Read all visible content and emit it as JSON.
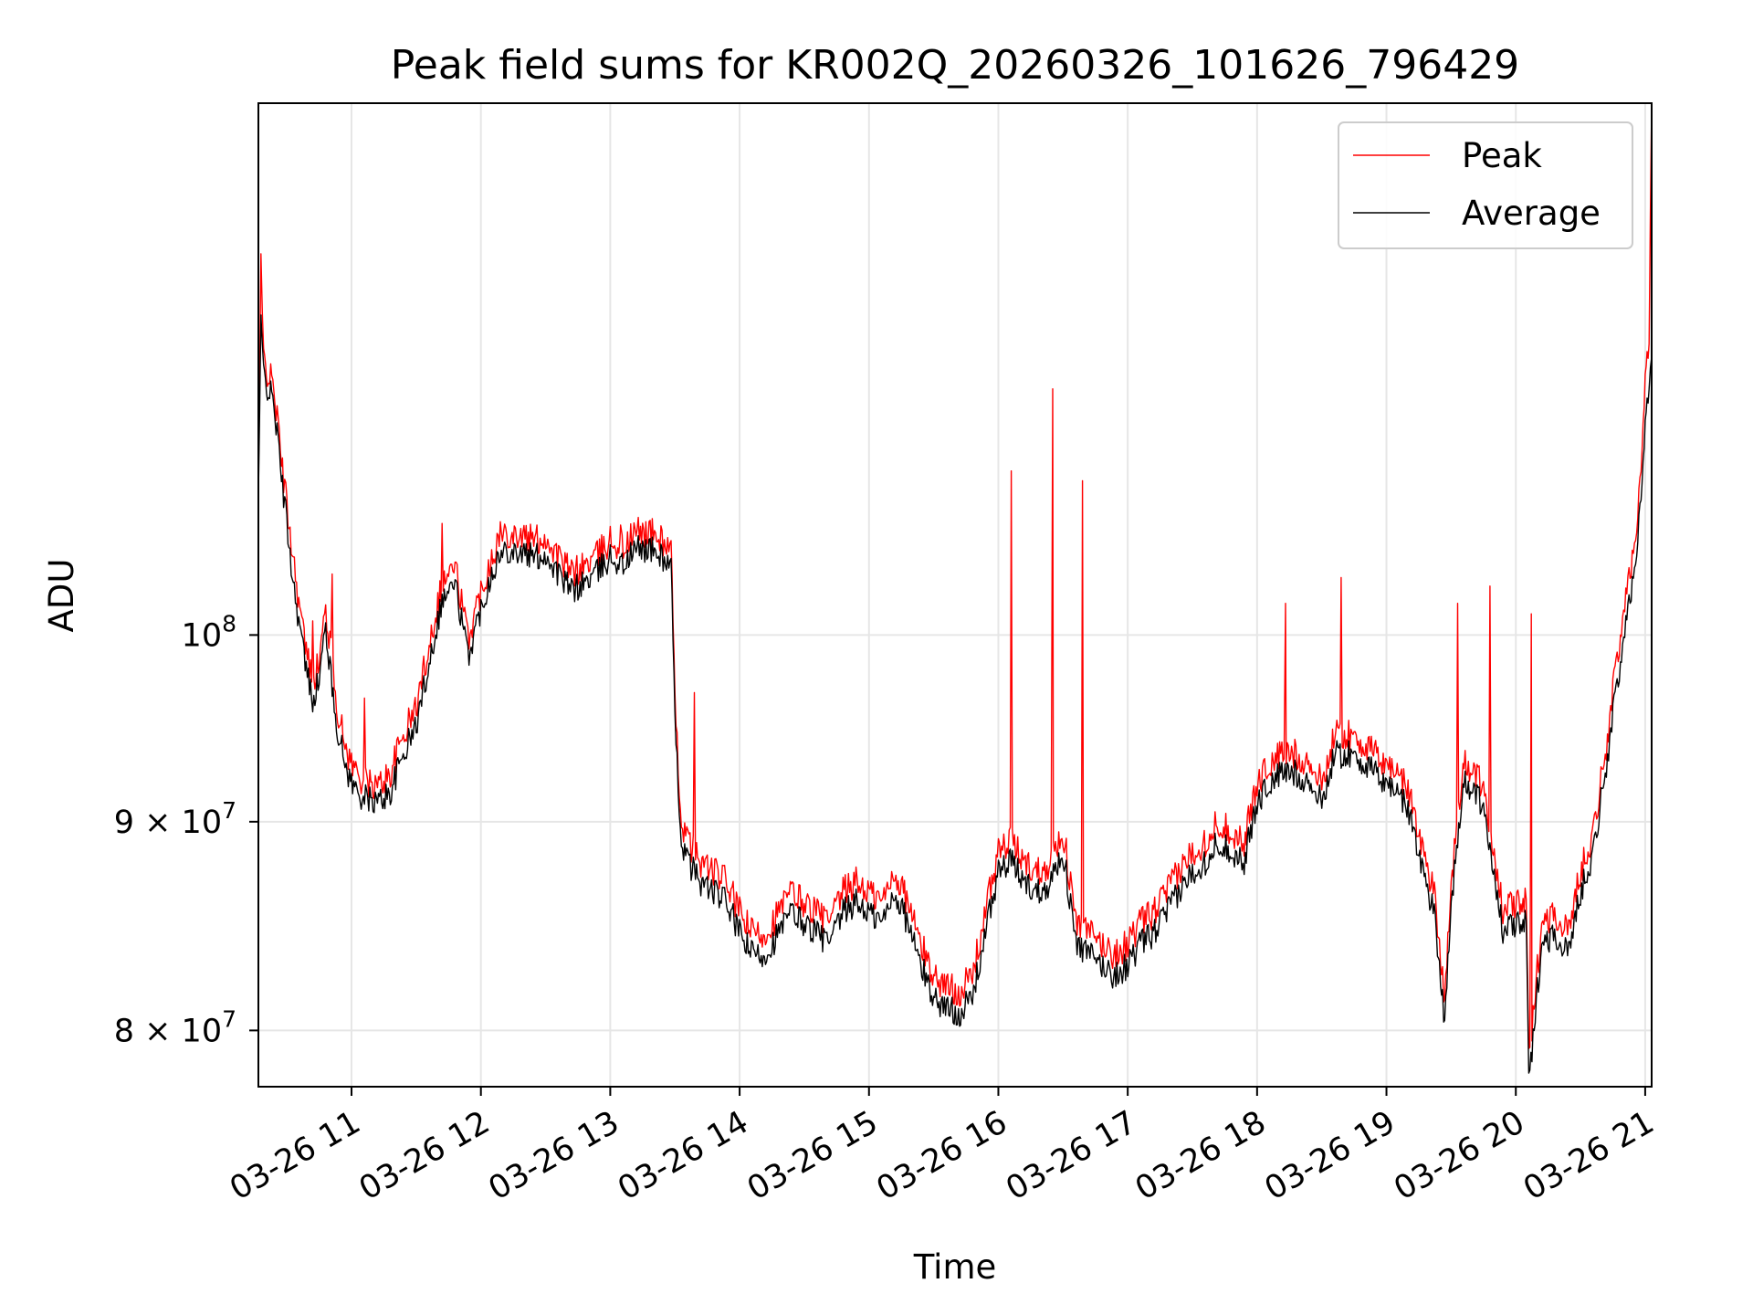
{
  "chart_data": {
    "type": "line",
    "title": "Peak field sums for KR002Q_20260326_101626_796429",
    "xlabel": "Time",
    "ylabel": "ADU",
    "yscale": "log",
    "grid": true,
    "legend_placement": "top-right",
    "xlim": [
      10.28,
      21.05
    ],
    "ylim": [
      77500000,
      135000000
    ],
    "x_ticks": [
      11,
      12,
      13,
      14,
      15,
      16,
      17,
      18,
      19,
      20,
      21
    ],
    "x_tick_labels": [
      "03-26 11",
      "03-26 12",
      "03-26 13",
      "03-26 14",
      "03-26 15",
      "03-26 16",
      "03-26 17",
      "03-26 18",
      "03-26 19",
      "03-26 20",
      "03-26 21"
    ],
    "y_ticks": [
      80000000,
      90000000,
      100000000
    ],
    "y_tick_labels": [
      {
        "mantissa": "8",
        "times": "×",
        "base": "10",
        "exp": "7"
      },
      {
        "mantissa": "9",
        "times": "×",
        "base": "10",
        "exp": "7"
      },
      {
        "mantissa": "",
        "times": "",
        "base": "10",
        "exp": "8"
      }
    ],
    "x_unit": "hour of day 2026-03-26",
    "series": [
      {
        "name": "Peak",
        "color": "#ff0000"
      },
      {
        "name": "Average",
        "color": "#000000"
      }
    ],
    "x": [
      10.28,
      10.3,
      10.32,
      10.35,
      10.4,
      10.45,
      10.5,
      10.55,
      10.6,
      10.65,
      10.7,
      10.75,
      10.8,
      10.85,
      10.9,
      10.95,
      11.0,
      11.05,
      11.1,
      11.2,
      11.3,
      11.4,
      11.5,
      11.6,
      11.7,
      11.8,
      11.9,
      12.0,
      12.1,
      12.2,
      12.3,
      12.4,
      12.5,
      12.6,
      12.7,
      12.8,
      12.9,
      13.0,
      13.1,
      13.2,
      13.3,
      13.4,
      13.47,
      13.5,
      13.55,
      13.6,
      13.7,
      13.8,
      13.9,
      14.0,
      14.1,
      14.2,
      14.3,
      14.4,
      14.5,
      14.6,
      14.7,
      14.8,
      14.9,
      15.0,
      15.1,
      15.2,
      15.3,
      15.4,
      15.5,
      15.6,
      15.7,
      15.8,
      15.9,
      16.0,
      16.1,
      16.2,
      16.3,
      16.4,
      16.5,
      16.6,
      16.7,
      16.8,
      16.9,
      17.0,
      17.1,
      17.2,
      17.3,
      17.4,
      17.5,
      17.6,
      17.7,
      17.8,
      17.9,
      18.0,
      18.1,
      18.2,
      18.3,
      18.4,
      18.5,
      18.6,
      18.7,
      18.8,
      18.9,
      19.0,
      19.1,
      19.2,
      19.3,
      19.37,
      19.45,
      19.5,
      19.6,
      19.7,
      19.8,
      19.9,
      20.0,
      20.08,
      20.1,
      20.2,
      20.3,
      20.4,
      20.5,
      20.6,
      20.7,
      20.8,
      20.9,
      20.96,
      21.0,
      21.03,
      21.05
    ],
    "average": [
      108000000,
      119000000,
      116000000,
      115000000,
      114000000,
      110000000,
      106500000,
      103000000,
      100500000,
      98000000,
      96500000,
      97500000,
      100500000,
      97000000,
      94500000,
      93000000,
      92000000,
      91500000,
      91200000,
      91000000,
      91500000,
      93500000,
      95000000,
      98500000,
      102000000,
      103000000,
      98800000,
      101500000,
      104000000,
      105000000,
      104800000,
      104500000,
      104600000,
      103500000,
      102500000,
      103000000,
      103600000,
      104500000,
      104000000,
      105000000,
      105000000,
      104500000,
      104000000,
      95000000,
      89000000,
      88000000,
      87000000,
      86500000,
      86000000,
      84500000,
      83500000,
      83500000,
      84500000,
      85500000,
      85000000,
      84500000,
      84000000,
      85500000,
      86000000,
      85500000,
      85000000,
      86500000,
      85000000,
      83000000,
      81500000,
      81000000,
      80800000,
      81500000,
      84500000,
      87500000,
      88000000,
      87000000,
      86500000,
      87000000,
      88500000,
      84000000,
      83500000,
      83000000,
      82500000,
      83000000,
      84000000,
      84500000,
      85500000,
      86500000,
      87500000,
      88000000,
      89000000,
      88500000,
      88000000,
      91000000,
      92000000,
      92500000,
      92500000,
      92000000,
      91000000,
      93500000,
      93500000,
      93200000,
      92500000,
      92000000,
      91500000,
      90000000,
      87000000,
      85500000,
      80500000,
      86000000,
      92000000,
      91500000,
      89000000,
      84500000,
      85000000,
      85000000,
      77500000,
      84000000,
      84500000,
      83500000,
      86500000,
      88500000,
      93000000,
      98000000,
      103000000,
      107000000,
      113000000,
      115000000,
      117000000
    ],
    "peak": [
      109000000,
      122000000,
      117000000,
      116000000,
      115000000,
      111000000,
      107500000,
      104500000,
      101500000,
      99000000,
      97500000,
      98500000,
      101500000,
      98500000,
      95500000,
      94000000,
      93000000,
      92500000,
      92000000,
      91800000,
      92500000,
      94500000,
      96000000,
      99500000,
      103000000,
      104000000,
      99800000,
      102500000,
      105000000,
      106000000,
      105800000,
      105500000,
      105600000,
      104500000,
      103500000,
      104000000,
      104600000,
      105500000,
      105000000,
      106000000,
      106000000,
      105500000,
      105000000,
      96000000,
      90000000,
      89000000,
      88000000,
      87500000,
      87000000,
      85500000,
      84500000,
      84500000,
      85500000,
      86500000,
      86000000,
      85500000,
      85000000,
      86500000,
      87000000,
      86500000,
      86000000,
      87500000,
      86000000,
      84000000,
      82500000,
      82000000,
      81800000,
      82500000,
      85500000,
      88500000,
      89000000,
      88000000,
      87500000,
      88000000,
      89500000,
      85000000,
      84500000,
      84000000,
      83500000,
      84000000,
      85000000,
      85500000,
      86500000,
      87500000,
      88500000,
      89000000,
      90000000,
      89500000,
      89000000,
      92000000,
      93000000,
      93500000,
      93500000,
      93000000,
      92000000,
      94500000,
      94500000,
      94200000,
      93500000,
      93000000,
      92500000,
      91000000,
      88000000,
      86500000,
      81500000,
      87000000,
      93000000,
      92500000,
      90000000,
      85500000,
      86000000,
      86000000,
      78500000,
      85000000,
      85500000,
      84500000,
      87500000,
      89500000,
      94000000,
      99500000,
      104500000,
      108500000,
      116000000,
      118000000,
      135000000
    ],
    "spikes": [
      {
        "x": 10.3,
        "peak": 124000000
      },
      {
        "x": 10.7,
        "peak": 100800000
      },
      {
        "x": 10.85,
        "peak": 103500000
      },
      {
        "x": 11.1,
        "peak": 96500000
      },
      {
        "x": 11.7,
        "peak": 106500000
      },
      {
        "x": 12.15,
        "peak": 106600000
      },
      {
        "x": 12.55,
        "peak": 105000000
      },
      {
        "x": 13.08,
        "peak": 106400000
      },
      {
        "x": 13.65,
        "peak": 96800000
      },
      {
        "x": 16.1,
        "peak": 109700000
      },
      {
        "x": 16.42,
        "peak": 114900000
      },
      {
        "x": 16.65,
        "peak": 109100000
      },
      {
        "x": 18.22,
        "peak": 101800000
      },
      {
        "x": 18.65,
        "peak": 103300000
      },
      {
        "x": 19.55,
        "peak": 101800000
      },
      {
        "x": 19.8,
        "peak": 102800000
      },
      {
        "x": 20.12,
        "peak": 101200000
      }
    ]
  }
}
